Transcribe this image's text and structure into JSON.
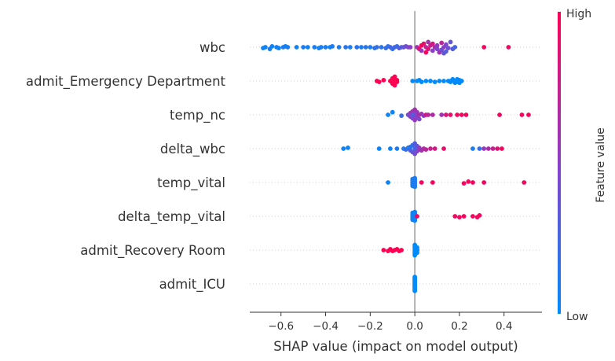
{
  "chart_data": {
    "type": "scatter",
    "subtype": "shap-beeswarm",
    "xlabel": "SHAP value (impact on model output)",
    "xlim": [
      -0.74,
      0.57
    ],
    "xticks": [
      -0.6,
      -0.4,
      -0.2,
      0.0,
      0.2,
      0.4
    ],
    "xtick_labels": [
      "−0.6",
      "−0.4",
      "−0.2",
      "0.0",
      "0.2",
      "0.4"
    ],
    "colorbar": {
      "title": "Feature value",
      "high_label": "High",
      "low_label": "Low",
      "low_color": "#008bfb",
      "high_color": "#ff0052"
    },
    "features": [
      {
        "name": "wbc",
        "points": [
          [
            -0.68,
            0.05
          ],
          [
            -0.67,
            0.0
          ],
          [
            -0.65,
            0.1
          ],
          [
            -0.64,
            -0.05
          ],
          [
            -0.62,
            0.0
          ],
          [
            -0.61,
            0.05
          ],
          [
            -0.59,
            0.0
          ],
          [
            -0.58,
            -0.05
          ],
          [
            -0.57,
            0.0
          ],
          [
            -0.53,
            0.0
          ],
          [
            -0.5,
            0.0
          ],
          [
            -0.48,
            0.0
          ],
          [
            -0.45,
            0.0
          ],
          [
            -0.43,
            0.05
          ],
          [
            -0.42,
            0.0
          ],
          [
            -0.4,
            0.0
          ],
          [
            -0.38,
            0.0
          ],
          [
            -0.37,
            -0.05
          ],
          [
            -0.34,
            0.0
          ],
          [
            -0.31,
            0.0
          ],
          [
            -0.29,
            0.0
          ],
          [
            -0.26,
            0.0
          ],
          [
            -0.24,
            0.0
          ],
          [
            -0.22,
            0.0
          ],
          [
            -0.2,
            0.0
          ],
          [
            -0.18,
            0.05
          ],
          [
            -0.17,
            0.0
          ],
          [
            -0.15,
            0.0
          ],
          [
            -0.13,
            0.05
          ],
          [
            -0.12,
            -0.05
          ],
          [
            -0.11,
            0.0
          ],
          [
            -0.1,
            0.1
          ],
          [
            -0.09,
            0.0
          ],
          [
            -0.08,
            -0.05
          ],
          [
            -0.07,
            0.05
          ],
          [
            -0.06,
            0.0
          ],
          [
            -0.05,
            0.0
          ],
          [
            -0.04,
            -0.05
          ],
          [
            -0.03,
            0.0
          ],
          [
            -0.02,
            0.0
          ],
          [
            0.01,
            0.0
          ],
          [
            0.02,
            0.1
          ],
          [
            0.03,
            -0.1
          ],
          [
            0.03,
            0.2
          ],
          [
            0.04,
            -0.2
          ],
          [
            0.05,
            0.0
          ],
          [
            0.05,
            0.3
          ],
          [
            0.06,
            -0.3
          ],
          [
            0.06,
            0.1
          ],
          [
            0.07,
            -0.1
          ],
          [
            0.08,
            0.2
          ],
          [
            0.08,
            -0.2
          ],
          [
            0.09,
            0.0
          ],
          [
            0.1,
            0.1
          ],
          [
            0.1,
            -0.1
          ],
          [
            0.11,
            0.3
          ],
          [
            0.12,
            -0.25
          ],
          [
            0.12,
            0.15
          ],
          [
            0.13,
            0.0
          ],
          [
            0.13,
            0.35
          ],
          [
            0.14,
            -0.15
          ],
          [
            0.14,
            0.25
          ],
          [
            0.15,
            0.05
          ],
          [
            0.16,
            -0.3
          ],
          [
            0.17,
            0.1
          ],
          [
            0.18,
            0.0
          ],
          [
            0.31,
            0.0
          ],
          [
            0.42,
            0.0
          ]
        ],
        "values": [
          0.05,
          0.05,
          0.1,
          0.05,
          0.1,
          0.05,
          0.1,
          0.05,
          0.1,
          0.05,
          0.1,
          0.05,
          0.1,
          0.05,
          0.1,
          0.1,
          0.05,
          0.1,
          0.1,
          0.15,
          0.1,
          0.15,
          0.1,
          0.15,
          0.1,
          0.15,
          0.2,
          0.15,
          0.2,
          0.15,
          0.25,
          0.2,
          0.25,
          0.2,
          0.3,
          0.3,
          0.35,
          0.4,
          0.45,
          0.5,
          0.6,
          0.9,
          0.95,
          0.55,
          0.9,
          0.7,
          0.95,
          0.6,
          0.85,
          0.75,
          0.5,
          0.8,
          0.65,
          0.45,
          0.55,
          0.6,
          0.7,
          0.4,
          0.5,
          0.35,
          0.45,
          0.3,
          0.4,
          0.35,
          0.3,
          0.25,
          0.95,
          0.95
        ]
      },
      {
        "name": "admit_Emergency Department",
        "points": [
          [
            -0.17,
            0.0
          ],
          [
            -0.16,
            0.05
          ],
          [
            -0.14,
            -0.05
          ],
          [
            -0.11,
            0.0
          ],
          [
            -0.1,
            0.15
          ],
          [
            -0.1,
            -0.15
          ],
          [
            -0.09,
            0.25
          ],
          [
            -0.09,
            -0.25
          ],
          [
            -0.08,
            0.05
          ],
          [
            -0.08,
            -0.05
          ],
          [
            -0.09,
            0.0
          ],
          [
            -0.01,
            0.0
          ],
          [
            0.01,
            0.0
          ],
          [
            0.02,
            -0.05
          ],
          [
            0.03,
            0.05
          ],
          [
            0.05,
            0.0
          ],
          [
            0.07,
            0.0
          ],
          [
            0.09,
            0.05
          ],
          [
            0.11,
            0.0
          ],
          [
            0.13,
            0.0
          ],
          [
            0.15,
            0.0
          ],
          [
            0.16,
            0.05
          ],
          [
            0.17,
            -0.05
          ],
          [
            0.18,
            0.0
          ],
          [
            0.19,
            0.05
          ],
          [
            0.2,
            -0.05
          ],
          [
            0.21,
            0.0
          ],
          [
            0.2,
            0.1
          ],
          [
            0.19,
            -0.1
          ],
          [
            0.18,
            0.1
          ],
          [
            0.17,
            -0.1
          ],
          [
            0.16,
            0.0
          ]
        ],
        "values": [
          1,
          1,
          1,
          1,
          1,
          1,
          1,
          1,
          1,
          1,
          1,
          0,
          0,
          0,
          0,
          0,
          0,
          0,
          0,
          0,
          0,
          0,
          0,
          0,
          0,
          0,
          0,
          0,
          0,
          0,
          0,
          0
        ]
      },
      {
        "name": "temp_nc",
        "points": [
          [
            -0.12,
            0.0
          ],
          [
            -0.1,
            -0.15
          ],
          [
            -0.06,
            0.05
          ],
          [
            -0.03,
            0.0
          ],
          [
            -0.02,
            0.1
          ],
          [
            -0.02,
            -0.1
          ],
          [
            -0.01,
            0.2
          ],
          [
            -0.01,
            -0.2
          ],
          [
            0.0,
            0.05
          ],
          [
            0.0,
            -0.05
          ],
          [
            0.0,
            0.3
          ],
          [
            0.0,
            -0.3
          ],
          [
            -0.01,
            0.0
          ],
          [
            0.01,
            0.15
          ],
          [
            0.01,
            -0.15
          ],
          [
            0.02,
            0.0
          ],
          [
            0.02,
            0.25
          ],
          [
            0.03,
            -0.05
          ],
          [
            0.04,
            0.05
          ],
          [
            0.05,
            0.0
          ],
          [
            0.06,
            0.0
          ],
          [
            0.08,
            0.0
          ],
          [
            0.12,
            0.0
          ],
          [
            0.14,
            0.0
          ],
          [
            0.16,
            0.0
          ],
          [
            0.19,
            0.0
          ],
          [
            0.21,
            0.0
          ],
          [
            0.23,
            0.0
          ],
          [
            0.38,
            0.0
          ],
          [
            0.48,
            0.0
          ],
          [
            0.51,
            0.0
          ]
        ],
        "values": [
          0.05,
          0.05,
          0.2,
          0.4,
          0.5,
          0.55,
          0.45,
          0.6,
          0.5,
          0.45,
          0.55,
          0.6,
          0.3,
          0.5,
          0.55,
          0.65,
          0.45,
          0.6,
          0.5,
          0.8,
          0.7,
          0.65,
          0.6,
          0.85,
          0.9,
          0.95,
          0.95,
          0.95,
          0.95,
          0.95,
          0.95
        ]
      },
      {
        "name": "delta_wbc",
        "points": [
          [
            -0.32,
            0.0
          ],
          [
            -0.3,
            -0.05
          ],
          [
            -0.16,
            0.0
          ],
          [
            -0.11,
            0.0
          ],
          [
            -0.08,
            0.0
          ],
          [
            -0.05,
            0.0
          ],
          [
            -0.04,
            0.05
          ],
          [
            -0.03,
            -0.05
          ],
          [
            -0.02,
            0.1
          ],
          [
            -0.02,
            -0.1
          ],
          [
            -0.01,
            0.2
          ],
          [
            -0.01,
            -0.2
          ],
          [
            0.0,
            0.0
          ],
          [
            0.0,
            0.3
          ],
          [
            0.0,
            -0.3
          ],
          [
            0.01,
            0.15
          ],
          [
            0.01,
            -0.15
          ],
          [
            0.02,
            0.05
          ],
          [
            0.02,
            -0.05
          ],
          [
            0.03,
            0.1
          ],
          [
            0.04,
            0.0
          ],
          [
            0.05,
            0.05
          ],
          [
            0.07,
            0.0
          ],
          [
            0.09,
            0.0
          ],
          [
            0.13,
            0.0
          ],
          [
            0.26,
            0.0
          ],
          [
            0.29,
            0.0
          ],
          [
            0.31,
            0.0
          ],
          [
            0.33,
            0.0
          ],
          [
            0.35,
            0.0
          ],
          [
            0.37,
            0.0
          ],
          [
            0.39,
            0.0
          ]
        ],
        "values": [
          0.05,
          0.05,
          0.05,
          0.05,
          0.1,
          0.1,
          0.2,
          0.1,
          0.3,
          0.15,
          0.35,
          0.2,
          0.25,
          0.4,
          0.3,
          0.45,
          0.35,
          0.5,
          0.55,
          0.6,
          0.65,
          0.7,
          0.75,
          0.8,
          0.9,
          0.1,
          0.2,
          0.55,
          0.65,
          0.75,
          0.85,
          0.95
        ]
      },
      {
        "name": "temp_vital",
        "points": [
          [
            -0.12,
            0.0
          ],
          [
            -0.01,
            0.0
          ],
          [
            -0.01,
            0.1
          ],
          [
            -0.01,
            -0.1
          ],
          [
            -0.01,
            0.2
          ],
          [
            -0.01,
            -0.2
          ],
          [
            0.0,
            0.05
          ],
          [
            0.0,
            -0.05
          ],
          [
            0.0,
            0.25
          ],
          [
            0.0,
            -0.25
          ],
          [
            0.0,
            0.15
          ],
          [
            0.0,
            -0.15
          ],
          [
            0.03,
            0.0
          ],
          [
            0.08,
            0.0
          ],
          [
            0.22,
            0.05
          ],
          [
            0.24,
            -0.05
          ],
          [
            0.26,
            0.0
          ],
          [
            0.31,
            0.0
          ],
          [
            0.49,
            0.0
          ]
        ],
        "values": [
          0.05,
          0.1,
          0.1,
          0.1,
          0.1,
          0.1,
          0.1,
          0.1,
          0.1,
          0.1,
          0.1,
          0.1,
          0.95,
          0.95,
          0.95,
          0.95,
          0.95,
          0.95,
          0.95
        ]
      },
      {
        "name": "delta_temp_vital",
        "points": [
          [
            -0.01,
            0.0
          ],
          [
            -0.01,
            0.1
          ],
          [
            -0.01,
            -0.1
          ],
          [
            -0.01,
            0.2
          ],
          [
            -0.01,
            -0.2
          ],
          [
            0.0,
            0.05
          ],
          [
            0.0,
            -0.05
          ],
          [
            0.0,
            0.25
          ],
          [
            0.0,
            -0.25
          ],
          [
            0.0,
            0.15
          ],
          [
            0.0,
            -0.15
          ],
          [
            0.01,
            0.0
          ],
          [
            0.18,
            0.0
          ],
          [
            0.2,
            0.05
          ],
          [
            0.22,
            0.0
          ],
          [
            0.26,
            0.0
          ],
          [
            0.28,
            0.05
          ],
          [
            0.29,
            -0.05
          ]
        ],
        "values": [
          0.05,
          0.05,
          0.05,
          0.05,
          0.05,
          0.05,
          0.05,
          0.05,
          0.05,
          0.05,
          0.05,
          0.95,
          0.95,
          0.95,
          0.95,
          0.95,
          0.95,
          0.95
        ]
      },
      {
        "name": "admit_Recovery Room",
        "points": [
          [
            -0.14,
            0.0
          ],
          [
            -0.12,
            0.05
          ],
          [
            -0.11,
            -0.05
          ],
          [
            -0.1,
            0.05
          ],
          [
            -0.09,
            0.0
          ],
          [
            -0.08,
            -0.05
          ],
          [
            -0.07,
            0.05
          ],
          [
            -0.06,
            0.0
          ],
          [
            0.0,
            0.0
          ],
          [
            0.0,
            0.1
          ],
          [
            0.0,
            -0.1
          ],
          [
            0.0,
            0.2
          ],
          [
            0.0,
            -0.2
          ],
          [
            0.01,
            0.05
          ],
          [
            0.01,
            -0.05
          ],
          [
            0.0,
            0.3
          ],
          [
            0.0,
            -0.3
          ],
          [
            0.01,
            0.15
          ],
          [
            0.01,
            -0.15
          ],
          [
            0.01,
            0.0
          ]
        ],
        "values": [
          1,
          1,
          1,
          1,
          1,
          1,
          1,
          1,
          0,
          0,
          0,
          0,
          0,
          0,
          0,
          0,
          0,
          0,
          0,
          0
        ]
      },
      {
        "name": "admit_ICU",
        "points": [
          [
            0.0,
            0.0
          ],
          [
            0.0,
            0.1
          ],
          [
            0.0,
            -0.1
          ],
          [
            0.0,
            0.2
          ],
          [
            0.0,
            -0.2
          ],
          [
            0.0,
            0.3
          ],
          [
            0.0,
            -0.3
          ],
          [
            0.0,
            0.4
          ],
          [
            0.0,
            -0.4
          ],
          [
            0.0,
            0.05
          ],
          [
            0.0,
            -0.05
          ],
          [
            0.0,
            0.15
          ],
          [
            0.0,
            -0.15
          ],
          [
            0.0,
            0.25
          ],
          [
            0.0,
            -0.25
          ],
          [
            0.0,
            0.35
          ],
          [
            0.0,
            -0.35
          ]
        ],
        "values": [
          0,
          0,
          0,
          0,
          0,
          0,
          0,
          0,
          0,
          0,
          0,
          0,
          0,
          0,
          0,
          0,
          0
        ]
      }
    ]
  }
}
